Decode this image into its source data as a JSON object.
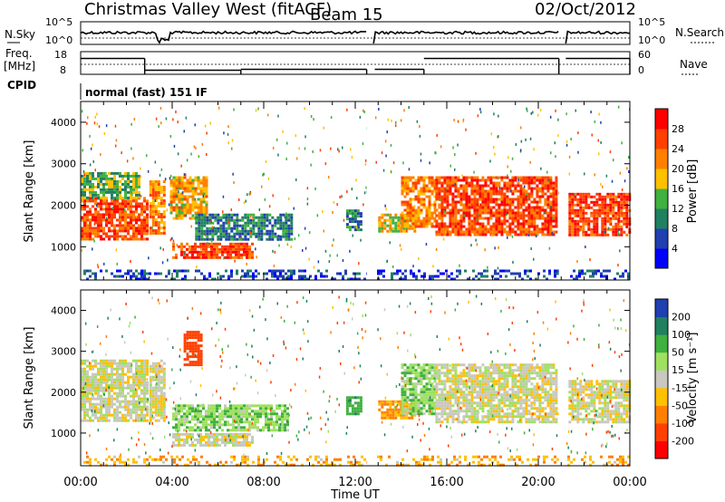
{
  "header": {
    "station": "Christmas Valley West (fitACF)",
    "beam": "Beam 15",
    "date": "02/Oct/2012"
  },
  "top_panels": {
    "nsky_label": "N.Sky",
    "nsky_ticks": [
      "10^5",
      "10^0"
    ],
    "nsearch_label": "N.Search",
    "nsearch_ticks": [
      "10^5",
      "10^0"
    ],
    "freq_label_1": "Freq.",
    "freq_label_2": "[MHz]",
    "freq_ticks": [
      "18",
      "8"
    ],
    "nave_label": "Nave",
    "nave_ticks": [
      "60",
      "0"
    ],
    "cpid_label": "CPID",
    "cpid_text": "normal (fast) 151 IF"
  },
  "power_panel": {
    "ylabel": "Slant Range [km]",
    "yticks": [
      "4000",
      "3000",
      "2000",
      "1000"
    ],
    "colorbar_label": "Power [dB]",
    "colorbar_ticks": [
      "28",
      "24",
      "20",
      "16",
      "12",
      "8",
      "4"
    ],
    "colors": [
      "#0000ff",
      "#2040b0",
      "#208060",
      "#40b040",
      "#ffc000",
      "#ff8000",
      "#ff4000",
      "#ff0000"
    ]
  },
  "velocity_panel": {
    "ylabel": "Slant Range [km]",
    "yticks": [
      "4000",
      "3000",
      "2000",
      "1000"
    ],
    "colorbar_label": "Velocity [m s⁻¹]",
    "colorbar_ticks": [
      "200",
      "100",
      "50",
      "15",
      "-15",
      "-50",
      "-100",
      "-200"
    ],
    "colors": [
      "#2040b0",
      "#208060",
      "#40b040",
      "#a0e060",
      "#c8c8c0",
      "#ffc000",
      "#ff8000",
      "#ff4000",
      "#ff0000"
    ]
  },
  "xaxis": {
    "label": "Time UT",
    "ticks": [
      "00:00",
      "04:00",
      "08:00",
      "12:00",
      "16:00",
      "20:00",
      "00:00"
    ]
  },
  "chart_data": {
    "type": "heatmap",
    "title": "Christmas Valley West (fitACF) Beam 15 02/Oct/2012",
    "xlabel": "Time UT",
    "ylabel": "Slant Range [km]",
    "xlim": [
      0,
      24
    ],
    "ylim": [
      200,
      4500
    ],
    "data_gaps_hours": [
      [
        12.5,
        12.85
      ],
      [
        20.9,
        21.2
      ]
    ],
    "freq_mhz": [
      {
        "from": 0,
        "to": 2.8,
        "value": 15
      },
      {
        "from": 2.8,
        "to": 7.0,
        "value": 9.8
      },
      {
        "from": 7.0,
        "to": 12.5,
        "value": 10.2
      },
      {
        "from": 12.85,
        "to": 15.0,
        "value": 10.2
      },
      {
        "from": 15.0,
        "to": 20.9,
        "value": 15
      },
      {
        "from": 21.2,
        "to": 24,
        "value": 15
      }
    ],
    "power_regions": [
      {
        "t0": 0.0,
        "t1": 2.9,
        "r0": 1200,
        "r1": 2200,
        "db": 26
      },
      {
        "t0": 0.0,
        "t1": 2.5,
        "r0": 2200,
        "r1": 2800,
        "db": 14
      },
      {
        "t0": 3.0,
        "t1": 3.6,
        "r0": 1300,
        "r1": 2600,
        "db": 22
      },
      {
        "t0": 3.9,
        "t1": 5.5,
        "r0": 1700,
        "r1": 2700,
        "db": 20
      },
      {
        "t0": 5.0,
        "t1": 9.2,
        "r0": 1200,
        "r1": 1800,
        "db": 9
      },
      {
        "t0": 4.0,
        "t1": 7.5,
        "r0": 750,
        "r1": 1100,
        "db": 26
      },
      {
        "t0": 11.6,
        "t1": 12.3,
        "r0": 1400,
        "r1": 1900,
        "db": 10
      },
      {
        "t0": 13.0,
        "t1": 14.6,
        "r0": 1400,
        "r1": 1800,
        "db": 18
      },
      {
        "t0": 14.0,
        "t1": 15.5,
        "r0": 1500,
        "r1": 2700,
        "db": 22
      },
      {
        "t0": 15.5,
        "t1": 20.8,
        "r0": 1300,
        "r1": 2700,
        "db": 26
      },
      {
        "t0": 21.2,
        "t1": 24.0,
        "r0": 1300,
        "r1": 2300,
        "db": 27
      },
      {
        "t0": 0.0,
        "t1": 24.0,
        "r0": 200,
        "r1": 450,
        "db": 6
      }
    ],
    "velocity_regions": [
      {
        "t0": 0.0,
        "t1": 2.9,
        "r0": 1300,
        "r1": 2800,
        "v": 0
      },
      {
        "t0": 3.0,
        "t1": 3.6,
        "r0": 1300,
        "r1": 2800,
        "v": 0
      },
      {
        "t0": 4.5,
        "t1": 5.3,
        "r0": 2700,
        "r1": 3500,
        "v": -150
      },
      {
        "t0": 4.0,
        "t1": 9.0,
        "r0": 1100,
        "r1": 1700,
        "v": 40
      },
      {
        "t0": 4.0,
        "t1": 7.5,
        "r0": 700,
        "r1": 1000,
        "v": 0
      },
      {
        "t0": 11.6,
        "t1": 12.3,
        "r0": 1500,
        "r1": 1900,
        "v": 80
      },
      {
        "t0": 13.0,
        "t1": 14.6,
        "r0": 1400,
        "r1": 1800,
        "v": -60
      },
      {
        "t0": 14.0,
        "t1": 15.5,
        "r0": 1500,
        "r1": 2700,
        "v": 40
      },
      {
        "t0": 15.5,
        "t1": 20.8,
        "r0": 1300,
        "r1": 2700,
        "v": 0
      },
      {
        "t0": 21.2,
        "t1": 24.0,
        "r0": 1300,
        "r1": 2300,
        "v": 0
      },
      {
        "t0": 0.0,
        "t1": 24.0,
        "r0": 200,
        "r1": 450,
        "v": -40
      }
    ]
  }
}
